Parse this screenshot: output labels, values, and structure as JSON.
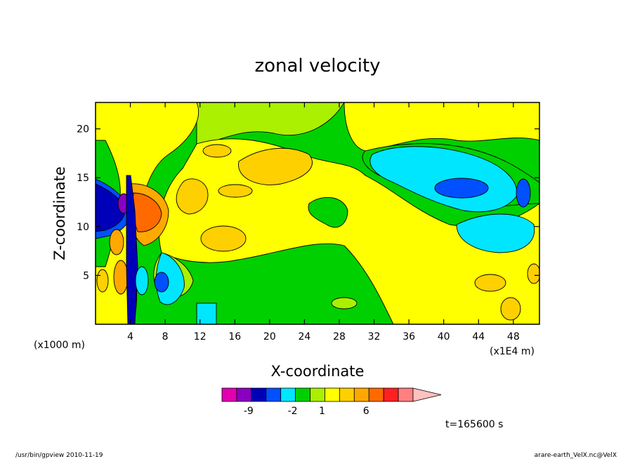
{
  "footer": {
    "left": "/usr/bin/gpview  2010-11-19",
    "right": "arare-earth_VelX.nc@VelX"
  },
  "time_label": "t=165600 s",
  "chart_data": {
    "type": "heatmap",
    "title": "zonal velocity",
    "xlabel": "X-coordinate",
    "ylabel": "Z-coordinate",
    "x_unit_label": "(x1E4 m)",
    "y_unit_label": "(x1000 m)",
    "xlim": [
      0,
      51
    ],
    "ylim": [
      0,
      22.7
    ],
    "x_ticks": [
      4,
      8,
      12,
      16,
      20,
      24,
      28,
      32,
      36,
      40,
      44,
      48
    ],
    "y_ticks": [
      5,
      10,
      15,
      20
    ],
    "x_tick_labels": [
      "4",
      "8",
      "12",
      "16",
      "20",
      "24",
      "28",
      "32",
      "36",
      "40",
      "44",
      "48"
    ],
    "y_tick_labels": [
      "5",
      "10",
      "15",
      "20"
    ],
    "colorbar": {
      "colors": [
        "#e000b0",
        "#8a00c0",
        "#0000b8",
        "#0050ff",
        "#00e6ff",
        "#00d000",
        "#aaf000",
        "#ffff00",
        "#ffd000",
        "#ffa800",
        "#ff6a00",
        "#ff2020",
        "#ff8080",
        "#ffc0c0"
      ],
      "labels": [
        "-9",
        "-2",
        "1",
        "6"
      ],
      "label_values": [
        -9,
        -2,
        1,
        6
      ]
    },
    "field_levels": {
      "light_green": "#aaf000",
      "green": "#00d000",
      "yellow": "#ffff00",
      "gold": "#ffd000",
      "orange": "#ffa800",
      "dark_orange": "#ff6a00",
      "cyan": "#00e6ff",
      "light_blue": "#0050ff",
      "navy": "#0000b8",
      "purple": "#8a00c0"
    }
  }
}
